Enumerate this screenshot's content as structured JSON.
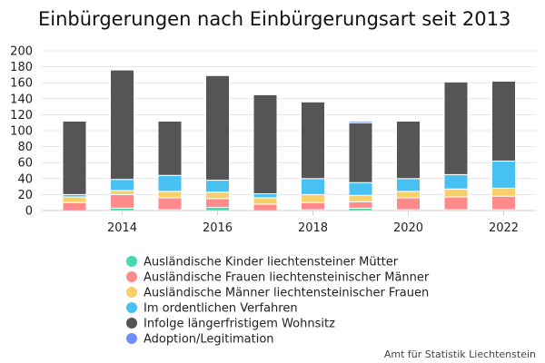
{
  "chart_data": {
    "type": "bar",
    "stacked": true,
    "title": "Einbürgerungen nach Einbürgerungsart seit 2013",
    "xlabel": "",
    "ylabel": "",
    "x": [
      2013,
      2014,
      2015,
      2016,
      2017,
      2018,
      2019,
      2020,
      2021,
      2022
    ],
    "x_tick_labels": [
      "2014",
      "2016",
      "2018",
      "2020",
      "2022"
    ],
    "ylim": [
      0,
      200
    ],
    "y_ticks": [
      "0",
      "20",
      "40",
      "60",
      "80",
      "100",
      "120",
      "140",
      "160",
      "180",
      "200"
    ],
    "grid": true,
    "legend_position": "bottom",
    "series": [
      {
        "name": "Ausländische Kinder liechtensteiner Mütter",
        "color": "#44d9b0",
        "values": [
          0,
          3,
          1,
          4,
          0,
          1,
          3,
          1,
          1,
          1
        ]
      },
      {
        "name": "Ausländische Frauen liechtensteinischer Männer",
        "color": "#ff8a8c",
        "values": [
          10,
          17,
          15,
          11,
          8,
          9,
          8,
          15,
          16,
          17
        ]
      },
      {
        "name": "Ausländische Männer liechtensteinischer Frauen",
        "color": "#f7d06a",
        "values": [
          7,
          5,
          8,
          8,
          8,
          10,
          8,
          8,
          10,
          10
        ]
      },
      {
        "name": "Im ordentlichen Verfahren",
        "color": "#47c1f1",
        "values": [
          3,
          14,
          20,
          15,
          5,
          20,
          16,
          16,
          18,
          34
        ]
      },
      {
        "name": "Infolge längerfristigem Wohnsitz",
        "color": "#555555",
        "values": [
          92,
          137,
          68,
          131,
          124,
          96,
          75,
          72,
          116,
          100
        ]
      },
      {
        "name": "Adoption/Legitimation",
        "color": "#6e8ff5",
        "values": [
          0,
          0,
          0,
          0,
          0,
          0,
          2,
          0,
          0,
          0
        ]
      }
    ]
  },
  "source": "Amt für Statistik Liechtenstein"
}
